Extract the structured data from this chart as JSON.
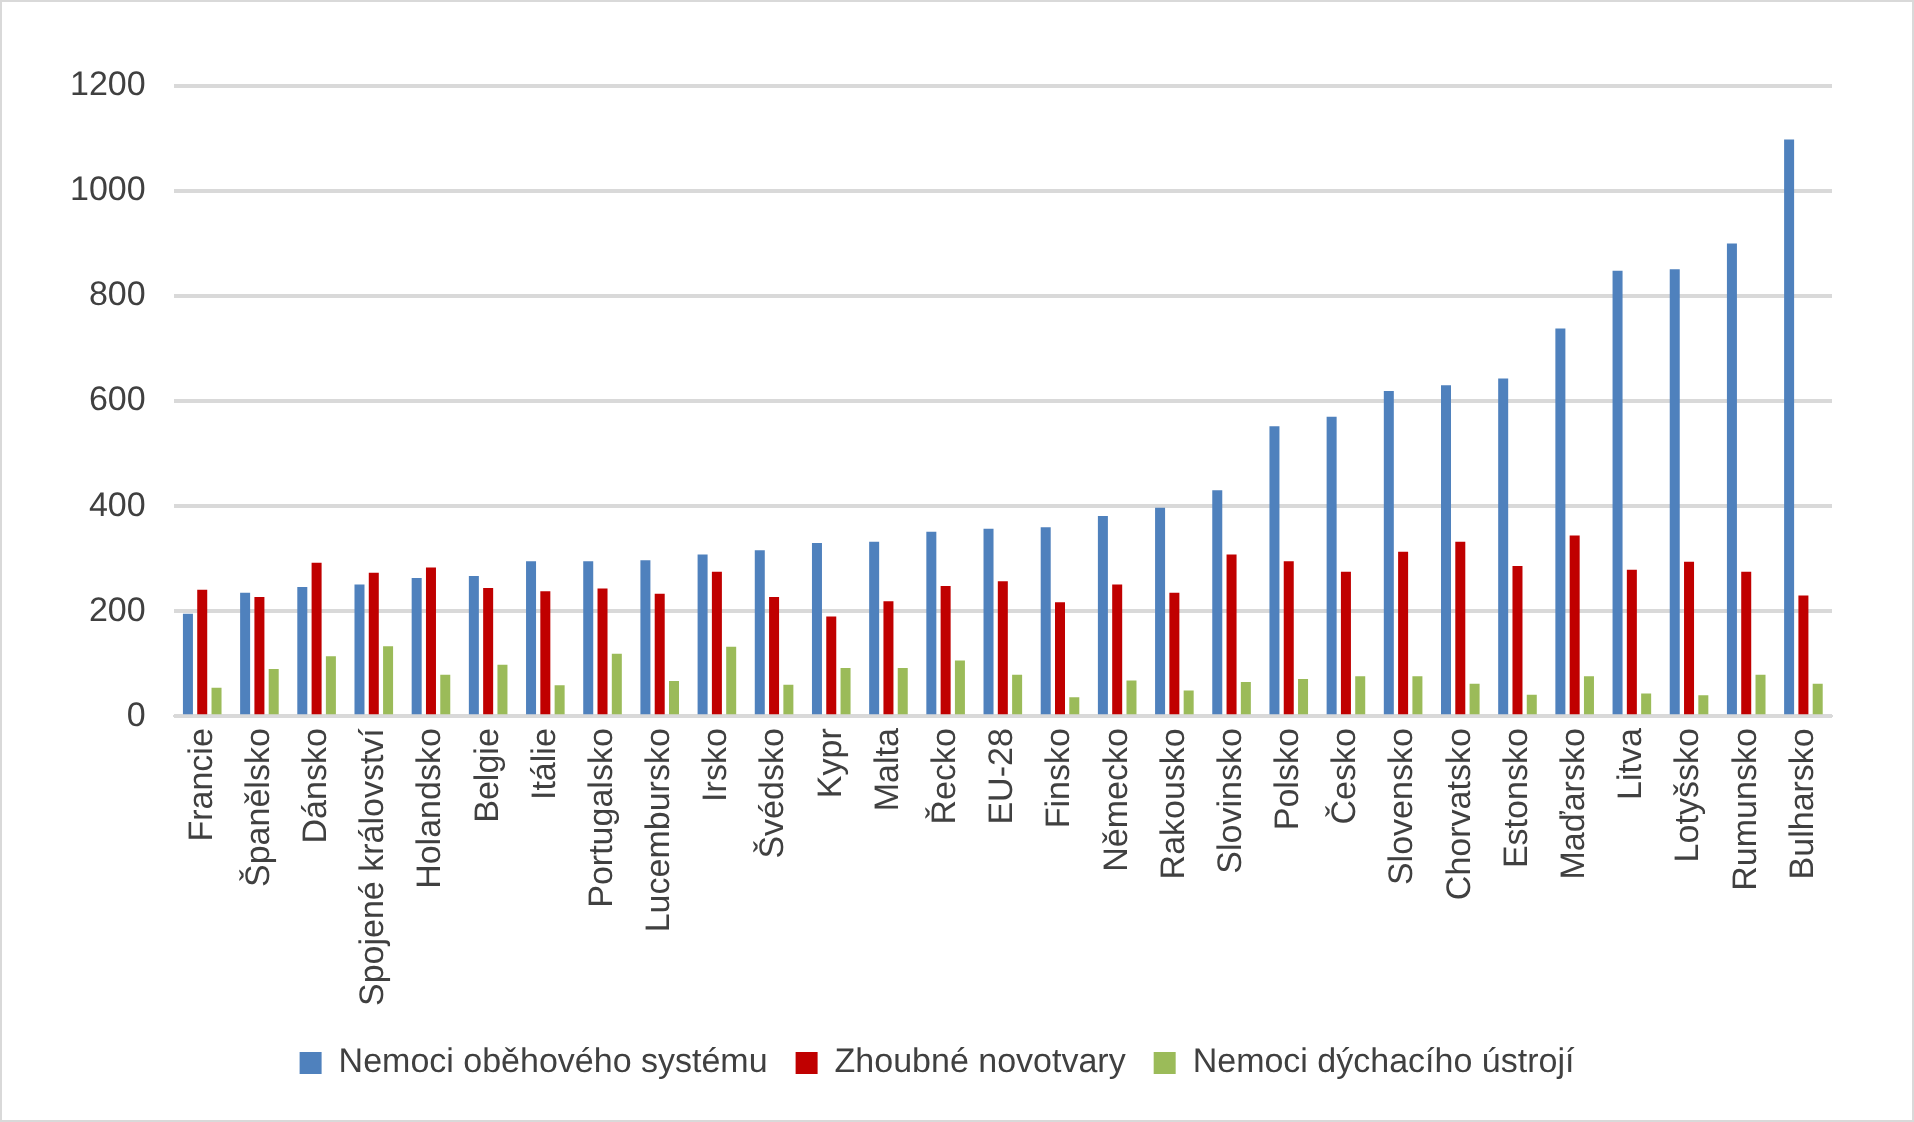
{
  "chart_data": {
    "type": "bar",
    "categories": [
      "Francie",
      "Španělsko",
      "Dánsko",
      "Spojené království",
      "Holandsko",
      "Belgie",
      "Itálie",
      "Portugalsko",
      "Lucembursko",
      "Irsko",
      "Švédsko",
      "Kypr",
      "Malta",
      "Řecko",
      "EU-28",
      "Finsko",
      "Německo",
      "Rakousko",
      "Slovinsko",
      "Polsko",
      "Česko",
      "Slovensko",
      "Chorvatsko",
      "Estonsko",
      "Maďarsko",
      "Litva",
      "Lotyšsko",
      "Rumunsko",
      "Bulharsko"
    ],
    "series": [
      {
        "name": "Nemoci oběhového systému",
        "color": "#4f81bd",
        "values": [
          195,
          235,
          246,
          251,
          263,
          267,
          295,
          295,
          297,
          308,
          316,
          330,
          332,
          351,
          357,
          360,
          381,
          397,
          430,
          552,
          570,
          619,
          630,
          643,
          738,
          848,
          851,
          900,
          1098
        ]
      },
      {
        "name": "Zhoubné novotvary",
        "color": "#c00000",
        "values": [
          241,
          227,
          292,
          273,
          283,
          244,
          238,
          243,
          233,
          275,
          227,
          190,
          219,
          248,
          257,
          217,
          251,
          235,
          308,
          295,
          275,
          313,
          332,
          286,
          344,
          279,
          294,
          275,
          230
        ]
      },
      {
        "name": "Nemoci dýchacího ústrojí",
        "color": "#9bbb59",
        "values": [
          54,
          90,
          114,
          133,
          79,
          98,
          59,
          119,
          67,
          132,
          60,
          92,
          92,
          106,
          79,
          36,
          68,
          49,
          65,
          71,
          76,
          76,
          62,
          41,
          76,
          43,
          40,
          79,
          62
        ]
      }
    ],
    "ylim": [
      0,
      1200
    ],
    "yticks": [
      0,
      200,
      400,
      600,
      800,
      1000,
      1200
    ],
    "grid": "y",
    "legend": "bottom"
  }
}
